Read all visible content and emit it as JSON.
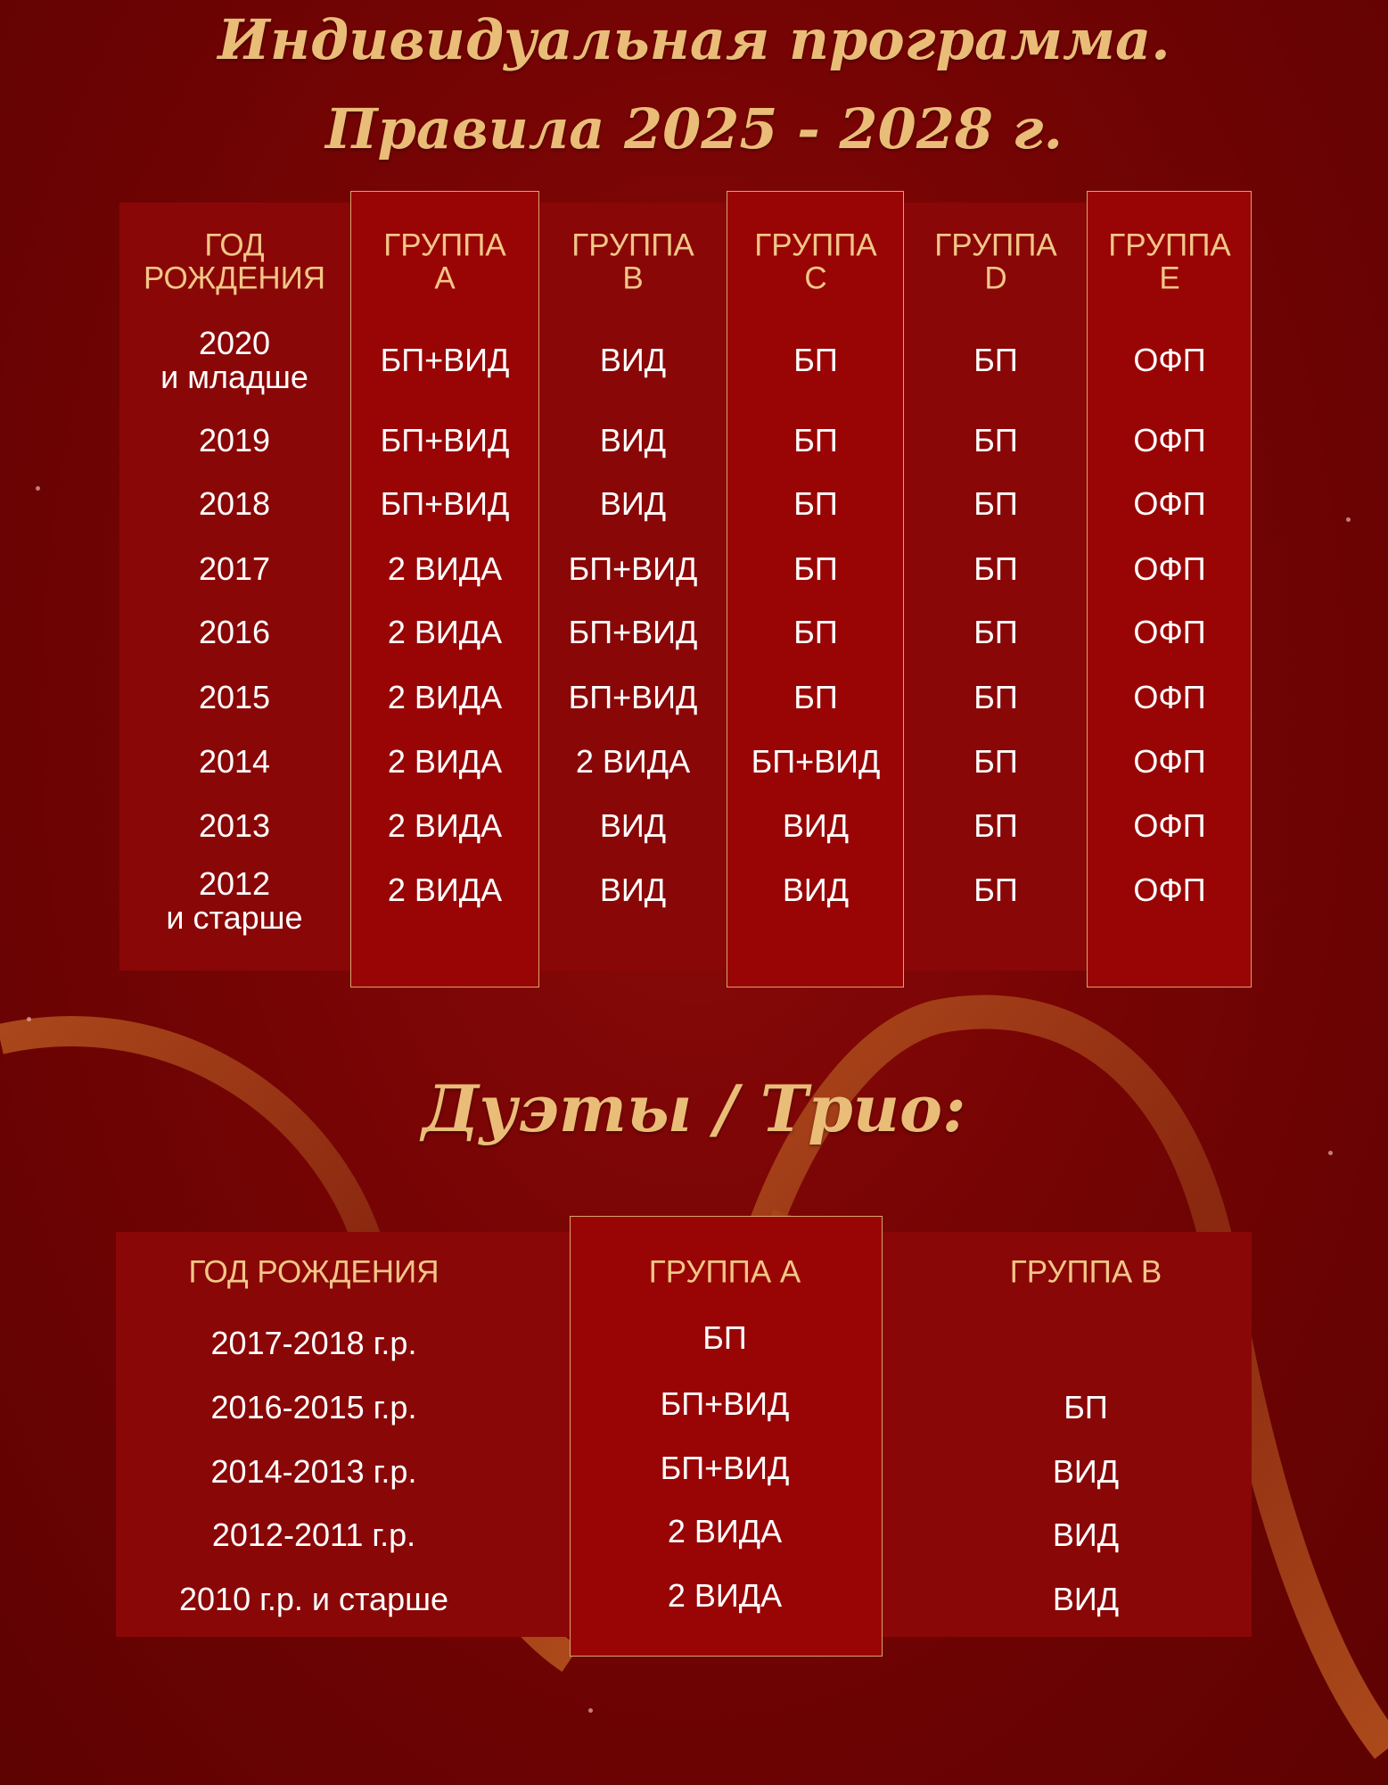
{
  "title_line1": "Индивидуальная программа.",
  "title_line2": "Правила 2025 - 2028 г.",
  "individual_table": {
    "headers": [
      "ГОД\nРОЖДЕНИЯ",
      "ГРУППА\nA",
      "ГРУППА\nB",
      "ГРУППА\nC",
      "ГРУППА\nD",
      "ГРУППА\nE"
    ],
    "rows": [
      [
        "2020\nи младше",
        "БП+ВИД",
        "ВИД",
        "БП",
        "БП",
        "ОФП"
      ],
      [
        "2019",
        "БП+ВИД",
        "ВИД",
        "БП",
        "БП",
        "ОФП"
      ],
      [
        "2018",
        "БП+ВИД",
        "ВИД",
        "БП",
        "БП",
        "ОФП"
      ],
      [
        "2017",
        "2 ВИДА",
        "БП+ВИД",
        "БП",
        "БП",
        "ОФП"
      ],
      [
        "2016",
        "2 ВИДА",
        "БП+ВИД",
        "БП",
        "БП",
        "ОФП"
      ],
      [
        "2015",
        "2 ВИДА",
        "БП+ВИД",
        "БП",
        "БП",
        "ОФП"
      ],
      [
        "2014",
        "2 ВИДА",
        "2 ВИДА",
        "БП+ВИД",
        "БП",
        "ОФП"
      ],
      [
        "2013",
        "2 ВИДА",
        "ВИД",
        "ВИД",
        "БП",
        "ОФП"
      ],
      [
        "2012\nи старше",
        "2 ВИДА",
        "ВИД",
        "ВИД",
        "БП",
        "ОФП"
      ]
    ]
  },
  "duets_title": "Дуэты / Трио:",
  "duets_table": {
    "headers": [
      "ГОД РОЖДЕНИЯ",
      "ГРУППА  A",
      "ГРУППА  B"
    ],
    "rows": [
      [
        "2017-2018 г.р.",
        "БП",
        ""
      ],
      [
        "2016-2015 г.р.",
        "БП+ВИД",
        "БП"
      ],
      [
        "2014-2013 г.р.",
        "БП+ВИД",
        "ВИД"
      ],
      [
        "2012-2011 г.р.",
        "2 ВИДА",
        "ВИД"
      ],
      [
        "2010 г.р. и старше",
        "2 ВИДА",
        "ВИД"
      ]
    ]
  },
  "colors": {
    "background": "#760404",
    "panel": "#8a0707",
    "highlight": "#990505",
    "gold": "#f2c688",
    "border": "#d8a56a",
    "ribbon": "#a5421c"
  }
}
